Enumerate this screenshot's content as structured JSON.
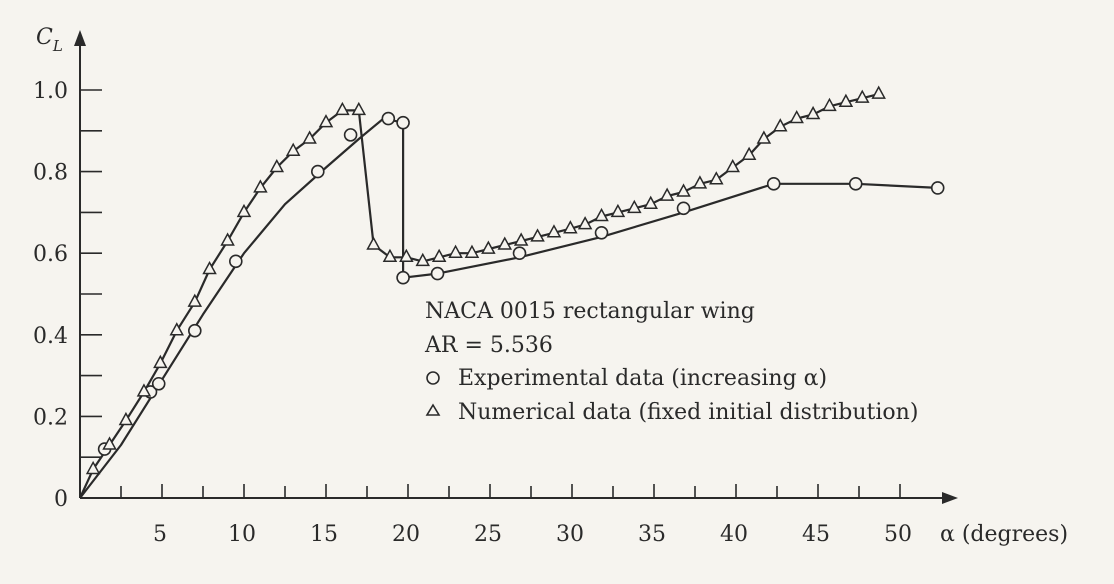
{
  "chart_data": {
    "type": "line",
    "title": "",
    "xlabel": "α (degrees)",
    "ylabel": "C_L",
    "xlim": [
      0,
      53
    ],
    "ylim": [
      0,
      1.05
    ],
    "x_ticks": [
      5,
      10,
      15,
      20,
      25,
      30,
      35,
      40,
      45,
      50
    ],
    "x_minor_ticks": [
      2.5,
      7.5,
      12.5,
      17.5,
      22.5,
      27.5,
      32.5,
      37.5,
      42.5,
      47.5
    ],
    "y_ticks": [
      0,
      0.2,
      0.4,
      0.6,
      0.8,
      1.0
    ],
    "y_tick_labels": [
      "0",
      "0.2",
      "0.4",
      "0.6",
      "0.8",
      "1.0"
    ],
    "y_minor_ticks": [
      0.1,
      0.3,
      0.5,
      0.7,
      0.9
    ],
    "grid": false,
    "annotation": {
      "title": "NACA 0015 rectangular wing",
      "subtitle": "AR = 5.536",
      "position": "center-right"
    },
    "series": [
      {
        "name": "Experimental data (increasing α)",
        "marker": "circle",
        "color": "#2a2a2a",
        "points": [
          [
            1.5,
            0.12
          ],
          [
            4.3,
            0.26
          ],
          [
            4.8,
            0.28
          ],
          [
            7,
            0.41
          ],
          [
            9.5,
            0.58
          ],
          [
            14.5,
            0.8
          ],
          [
            16.5,
            0.89
          ],
          [
            18.8,
            0.93
          ],
          [
            19.7,
            0.92
          ],
          [
            19.7,
            0.54
          ],
          [
            21.8,
            0.55
          ],
          [
            26.8,
            0.6
          ],
          [
            31.8,
            0.65
          ],
          [
            36.8,
            0.71
          ],
          [
            42.3,
            0.77
          ],
          [
            47.3,
            0.77
          ],
          [
            52.3,
            0.76
          ]
        ],
        "line": [
          [
            0,
            0
          ],
          [
            2.5,
            0.13
          ],
          [
            5,
            0.29
          ],
          [
            7.5,
            0.45
          ],
          [
            10,
            0.6
          ],
          [
            12.5,
            0.72
          ],
          [
            15,
            0.81
          ],
          [
            17,
            0.88
          ],
          [
            18.5,
            0.93
          ],
          [
            19.7,
            0.92
          ],
          [
            19.7,
            0.54
          ],
          [
            21.8,
            0.55
          ],
          [
            26.8,
            0.59
          ],
          [
            31.8,
            0.64
          ],
          [
            36.8,
            0.7
          ],
          [
            42.3,
            0.77
          ],
          [
            47.3,
            0.77
          ],
          [
            52.3,
            0.76
          ]
        ]
      },
      {
        "name": "Numerical data (fixed initial distribution)",
        "marker": "triangle",
        "color": "#2a2a2a",
        "points": [
          [
            0.8,
            0.07
          ],
          [
            1.8,
            0.13
          ],
          [
            2.8,
            0.19
          ],
          [
            3.9,
            0.26
          ],
          [
            4.9,
            0.33
          ],
          [
            5.9,
            0.41
          ],
          [
            7,
            0.48
          ],
          [
            7.9,
            0.56
          ],
          [
            9,
            0.63
          ],
          [
            10,
            0.7
          ],
          [
            11,
            0.76
          ],
          [
            12,
            0.81
          ],
          [
            13,
            0.85
          ],
          [
            14,
            0.88
          ],
          [
            15,
            0.92
          ],
          [
            16,
            0.95
          ],
          [
            17,
            0.95
          ],
          [
            17.9,
            0.62
          ],
          [
            18.9,
            0.59
          ],
          [
            19.9,
            0.59
          ],
          [
            20.9,
            0.58
          ],
          [
            21.9,
            0.59
          ],
          [
            22.9,
            0.6
          ],
          [
            23.9,
            0.6
          ],
          [
            24.9,
            0.61
          ],
          [
            25.9,
            0.62
          ],
          [
            26.9,
            0.63
          ],
          [
            27.9,
            0.64
          ],
          [
            28.9,
            0.65
          ],
          [
            29.9,
            0.66
          ],
          [
            30.8,
            0.67
          ],
          [
            31.8,
            0.69
          ],
          [
            32.8,
            0.7
          ],
          [
            33.8,
            0.71
          ],
          [
            34.8,
            0.72
          ],
          [
            35.8,
            0.74
          ],
          [
            36.8,
            0.75
          ],
          [
            37.8,
            0.77
          ],
          [
            38.8,
            0.78
          ],
          [
            39.8,
            0.81
          ],
          [
            40.8,
            0.84
          ],
          [
            41.7,
            0.88
          ],
          [
            42.7,
            0.91
          ],
          [
            43.7,
            0.93
          ],
          [
            44.7,
            0.94
          ],
          [
            45.7,
            0.96
          ],
          [
            46.7,
            0.97
          ],
          [
            47.7,
            0.98
          ],
          [
            48.7,
            0.99
          ]
        ]
      }
    ]
  }
}
